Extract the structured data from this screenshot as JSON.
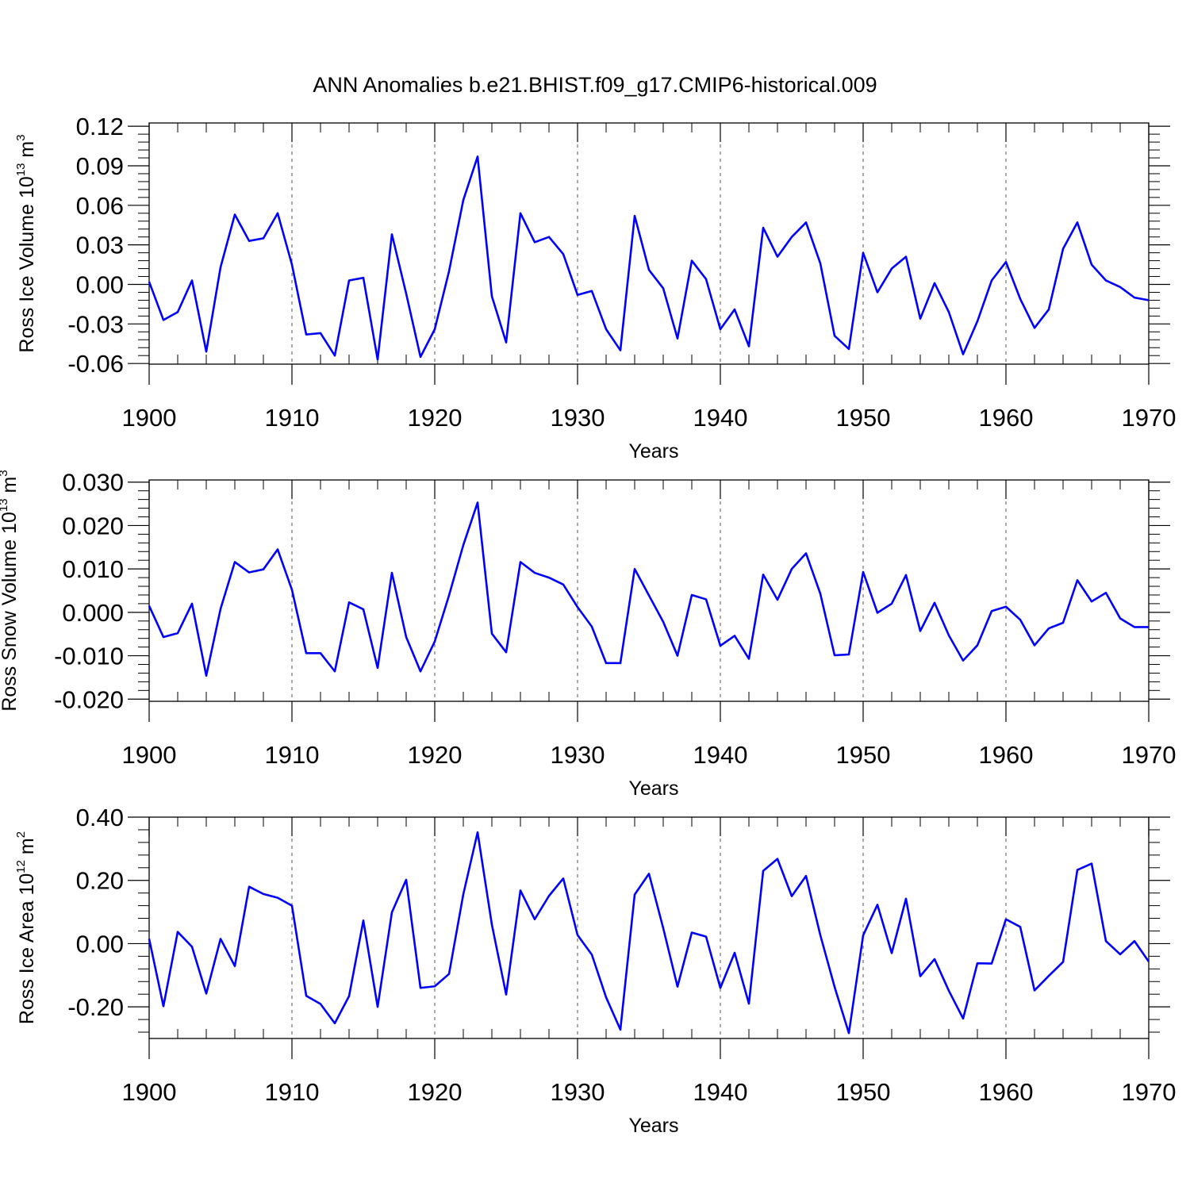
{
  "figure_title": "ANN Anomalies b.e21.BHIST.f09_g17.CMIP6-historical.009",
  "colors": {
    "line": "#0000ff",
    "axis": "#000000",
    "grid": "#555555",
    "background": "#ffffff"
  },
  "chart_data": [
    {
      "type": "line",
      "title": "ANN Anomalies b.e21.BHIST.f09_g17.CMIP6-historical.009",
      "xlabel": "Years",
      "ylabel": "Ross Ice Volume",
      "ylabel_units": {
        "base": "10",
        "exp": "13",
        "unit": "m",
        "unit_exp": "3"
      },
      "xlim": [
        1900,
        1970
      ],
      "ylim": [
        -0.0605,
        0.1225
      ],
      "xticks": [
        1900,
        1910,
        1920,
        1930,
        1940,
        1950,
        1960,
        1970
      ],
      "xtick_labels": [
        "1900",
        "1910",
        "1920",
        "1930",
        "1940",
        "1950",
        "1960",
        "1970"
      ],
      "yticks": [
        -0.06,
        -0.03,
        0.0,
        0.03,
        0.06,
        0.09,
        0.12
      ],
      "ytick_labels": [
        "-0.06",
        "-0.03",
        "0.00",
        "0.03",
        "0.06",
        "0.09",
        "0.12"
      ],
      "grid": "vertical dashed at major x ticks",
      "series": [
        {
          "name": "Ross Ice Volume",
          "x_start": 1900,
          "values": [
            0.002,
            -0.027,
            -0.021,
            0.003,
            -0.051,
            0.013,
            0.053,
            0.033,
            0.035,
            0.054,
            0.015,
            -0.038,
            -0.037,
            -0.054,
            0.003,
            0.005,
            -0.057,
            0.038,
            -0.007,
            -0.055,
            -0.034,
            0.01,
            0.064,
            0.097,
            -0.009,
            -0.044,
            0.054,
            0.032,
            0.036,
            0.023,
            -0.008,
            -0.005,
            -0.034,
            -0.05,
            0.052,
            0.011,
            -0.003,
            -0.041,
            0.018,
            0.004,
            -0.034,
            -0.019,
            -0.047,
            0.043,
            0.021,
            0.036,
            0.047,
            0.016,
            -0.039,
            -0.049,
            0.024,
            -0.006,
            0.012,
            0.021,
            -0.026,
            0.001,
            -0.021,
            -0.053,
            -0.028,
            0.003,
            0.017,
            -0.011,
            -0.033,
            -0.019,
            0.027,
            0.047,
            0.015,
            0.003,
            -0.002,
            -0.01,
            -0.012
          ]
        }
      ]
    },
    {
      "type": "line",
      "title": "",
      "xlabel": "Years",
      "ylabel": "Ross Snow Volume",
      "ylabel_units": {
        "base": "10",
        "exp": "13",
        "unit": "m",
        "unit_exp": "3"
      },
      "xlim": [
        1900,
        1970
      ],
      "ylim": [
        -0.0205,
        0.0305
      ],
      "xticks": [
        1900,
        1910,
        1920,
        1930,
        1940,
        1950,
        1960,
        1970
      ],
      "xtick_labels": [
        "1900",
        "1910",
        "1920",
        "1930",
        "1940",
        "1950",
        "1960",
        "1970"
      ],
      "yticks": [
        -0.02,
        -0.01,
        0.0,
        0.01,
        0.02,
        0.03
      ],
      "ytick_labels": [
        "-0.020",
        "-0.010",
        "0.000",
        "0.010",
        "0.020",
        "0.030"
      ],
      "grid": "vertical dashed at major x ticks",
      "series": [
        {
          "name": "Ross Snow Volume",
          "x_start": 1900,
          "values": [
            0.0015,
            -0.0057,
            -0.0048,
            0.002,
            -0.0146,
            0.0008,
            0.0116,
            0.0092,
            0.0099,
            0.0145,
            0.0052,
            -0.0094,
            -0.0094,
            -0.0136,
            0.0023,
            0.0007,
            -0.0128,
            0.0091,
            -0.0057,
            -0.0136,
            -0.0067,
            0.0039,
            0.0155,
            0.0253,
            -0.0049,
            -0.0092,
            0.0116,
            0.0091,
            0.008,
            0.0064,
            0.0012,
            -0.0033,
            -0.0117,
            -0.0117,
            0.01,
            0.0039,
            -0.0022,
            -0.01,
            0.004,
            0.003,
            -0.0077,
            -0.0054,
            -0.0107,
            0.0087,
            0.0029,
            0.01,
            0.0136,
            0.0043,
            -0.0099,
            -0.0097,
            0.0093,
            -0.0001,
            0.002,
            0.0086,
            -0.0043,
            0.0022,
            -0.0053,
            -0.0111,
            -0.0076,
            0.0003,
            0.0013,
            -0.0017,
            -0.0076,
            -0.0037,
            -0.0024,
            0.0074,
            0.0025,
            0.0045,
            -0.0014,
            -0.0034,
            -0.0034
          ]
        }
      ]
    },
    {
      "type": "line",
      "title": "",
      "xlabel": "Years",
      "ylabel": "Ross Ice Area",
      "ylabel_units": {
        "base": "10",
        "exp": "12",
        "unit": "m",
        "unit_exp": "2"
      },
      "xlim": [
        1900,
        1970
      ],
      "ylim": [
        -0.3,
        0.4
      ],
      "xticks": [
        1900,
        1910,
        1920,
        1930,
        1940,
        1950,
        1960,
        1970
      ],
      "xtick_labels": [
        "1900",
        "1910",
        "1920",
        "1930",
        "1940",
        "1950",
        "1960",
        "1970"
      ],
      "yticks": [
        -0.2,
        0.0,
        0.2,
        0.4
      ],
      "ytick_labels": [
        "-0.20",
        "0.00",
        "0.20",
        "0.40"
      ],
      "grid": "vertical dashed at major x ticks",
      "series": [
        {
          "name": "Ross Ice Area",
          "x_start": 1900,
          "values": [
            0.015,
            -0.198,
            0.037,
            -0.01,
            -0.158,
            0.015,
            -0.071,
            0.18,
            0.157,
            0.145,
            0.12,
            -0.165,
            -0.191,
            -0.252,
            -0.166,
            0.073,
            -0.2,
            0.099,
            0.202,
            -0.14,
            -0.135,
            -0.096,
            0.156,
            0.352,
            0.06,
            -0.161,
            0.168,
            0.077,
            0.151,
            0.206,
            0.027,
            -0.035,
            -0.17,
            -0.272,
            0.155,
            0.221,
            0.049,
            -0.136,
            0.035,
            0.022,
            -0.14,
            -0.029,
            -0.19,
            0.23,
            0.268,
            0.15,
            0.214,
            0.027,
            -0.137,
            -0.283,
            0.026,
            0.123,
            -0.03,
            0.142,
            -0.103,
            -0.049,
            -0.149,
            -0.237,
            -0.062,
            -0.063,
            0.077,
            0.053,
            -0.148,
            -0.102,
            -0.058,
            0.233,
            0.253,
            0.008,
            -0.034,
            0.008,
            -0.057
          ]
        }
      ]
    }
  ]
}
